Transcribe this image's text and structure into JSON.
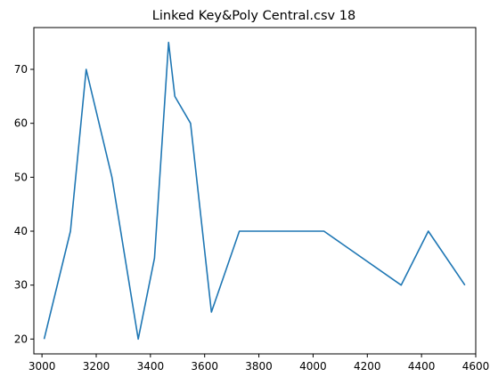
{
  "chart_data": {
    "type": "line",
    "title": "Linked Key&Poly Central.csv 18",
    "xlabel": "",
    "ylabel": "",
    "xlim": [
      2970,
      4600
    ],
    "ylim": [
      17.25,
      77.75
    ],
    "x_ticks": [
      3000,
      3200,
      3400,
      3600,
      3800,
      4000,
      4200,
      4400,
      4600
    ],
    "y_ticks": [
      20,
      30,
      40,
      50,
      60,
      70
    ],
    "grid": false,
    "colors": {
      "line": "#1f77b4"
    },
    "series": [
      {
        "x": [
          3008,
          3105,
          3163,
          3258,
          3355,
          3415,
          3467,
          3490,
          3548,
          3625,
          3728,
          4040,
          4325,
          4425,
          4560
        ],
        "y": [
          20,
          40,
          70,
          50,
          20,
          35,
          75,
          65,
          60,
          25,
          40,
          40,
          30,
          40,
          30
        ]
      }
    ]
  }
}
